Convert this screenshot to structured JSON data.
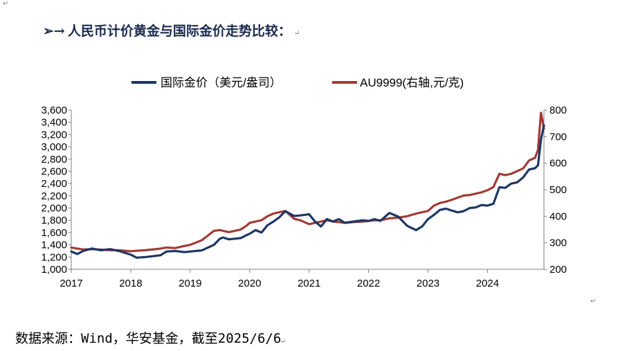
{
  "heading": {
    "arrow": "➢→",
    "text": "人民币计价黄金与国际金价走势比较：",
    "mark": "↵"
  },
  "source": {
    "text": "数据来源：Wind，华安基金，截至2025/6/6",
    "mark": "↵"
  },
  "colors": {
    "series1": "#1c3664",
    "series2": "#a33a35",
    "axis": "#7f7f7f"
  },
  "chart_data": {
    "type": "line",
    "legend_position": "top-center",
    "grid": false,
    "x_ticks": [
      "2017",
      "2018",
      "2019",
      "2020",
      "2021",
      "2022",
      "2023",
      "2024"
    ],
    "xlim": [
      2017.0,
      2024.95
    ],
    "y_left": {
      "ticks": [
        "1,000",
        "1,200",
        "1,400",
        "1,600",
        "1,800",
        "2,000",
        "2,200",
        "2,400",
        "2,600",
        "2,800",
        "3,000",
        "3,200",
        "3,400",
        "3,600"
      ],
      "ylim": [
        1000,
        3600
      ]
    },
    "y_right": {
      "ticks": [
        "200",
        "300",
        "400",
        "500",
        "600",
        "700",
        "800"
      ],
      "ylim": [
        200,
        800
      ]
    },
    "series": [
      {
        "name": "国际金价（美元/盎司）",
        "axis": "left",
        "x": [
          2017.0,
          2017.1,
          2017.2,
          2017.35,
          2017.5,
          2017.65,
          2017.8,
          2017.9,
          2018.0,
          2018.1,
          2018.25,
          2018.5,
          2018.6,
          2018.75,
          2018.9,
          2019.0,
          2019.2,
          2019.4,
          2019.5,
          2019.55,
          2019.65,
          2019.75,
          2019.85,
          2019.95,
          2020.0,
          2020.1,
          2020.2,
          2020.3,
          2020.4,
          2020.5,
          2020.6,
          2020.75,
          2020.85,
          2021.0,
          2021.1,
          2021.2,
          2021.3,
          2021.4,
          2021.5,
          2021.6,
          2021.75,
          2021.9,
          2022.0,
          2022.1,
          2022.2,
          2022.35,
          2022.5,
          2022.65,
          2022.8,
          2022.9,
          2023.0,
          2023.1,
          2023.2,
          2023.3,
          2023.4,
          2023.5,
          2023.6,
          2023.7,
          2023.8,
          2023.9,
          2024.0,
          2024.1,
          2024.2,
          2024.3,
          2024.4,
          2024.5,
          2024.6,
          2024.7,
          2024.8,
          2024.85,
          2024.9,
          2024.95
        ],
        "y": [
          1290,
          1250,
          1300,
          1340,
          1310,
          1330,
          1300,
          1270,
          1240,
          1190,
          1200,
          1230,
          1290,
          1300,
          1280,
          1290,
          1310,
          1400,
          1500,
          1520,
          1490,
          1500,
          1510,
          1560,
          1580,
          1640,
          1600,
          1720,
          1780,
          1850,
          1950,
          1870,
          1880,
          1900,
          1780,
          1700,
          1820,
          1780,
          1820,
          1760,
          1780,
          1800,
          1790,
          1820,
          1790,
          1920,
          1860,
          1710,
          1640,
          1700,
          1820,
          1890,
          1970,
          1990,
          1960,
          1930,
          1950,
          2000,
          2010,
          2050,
          2040,
          2070,
          2340,
          2330,
          2400,
          2420,
          2500,
          2630,
          2650,
          2700,
          3120,
          3350
        ]
      },
      {
        "name": "AU9999(右轴,元/克)",
        "axis": "right",
        "x": [
          2017.0,
          2017.1,
          2017.2,
          2017.35,
          2017.5,
          2017.65,
          2017.8,
          2017.9,
          2018.0,
          2018.1,
          2018.25,
          2018.5,
          2018.6,
          2018.75,
          2018.9,
          2019.0,
          2019.2,
          2019.4,
          2019.5,
          2019.55,
          2019.65,
          2019.75,
          2019.85,
          2019.95,
          2020.0,
          2020.1,
          2020.2,
          2020.3,
          2020.4,
          2020.5,
          2020.6,
          2020.75,
          2020.85,
          2021.0,
          2021.1,
          2021.2,
          2021.3,
          2021.4,
          2021.5,
          2021.6,
          2021.75,
          2021.9,
          2022.0,
          2022.1,
          2022.2,
          2022.35,
          2022.5,
          2022.65,
          2022.8,
          2022.9,
          2023.0,
          2023.1,
          2023.2,
          2023.3,
          2023.4,
          2023.5,
          2023.6,
          2023.7,
          2023.8,
          2023.9,
          2024.0,
          2024.1,
          2024.2,
          2024.3,
          2024.4,
          2024.5,
          2024.6,
          2024.7,
          2024.8,
          2024.85,
          2024.9,
          2024.95
        ],
        "y": [
          282,
          278,
          275,
          276,
          274,
          272,
          272,
          270,
          268,
          270,
          272,
          278,
          282,
          280,
          288,
          292,
          310,
          345,
          348,
          345,
          340,
          345,
          350,
          365,
          375,
          380,
          385,
          400,
          410,
          415,
          420,
          390,
          385,
          370,
          375,
          380,
          385,
          380,
          378,
          375,
          378,
          380,
          382,
          385,
          385,
          392,
          395,
          400,
          410,
          415,
          420,
          440,
          450,
          455,
          462,
          470,
          478,
          480,
          485,
          490,
          498,
          510,
          560,
          555,
          560,
          570,
          580,
          610,
          620,
          650,
          790,
          730
        ]
      }
    ]
  }
}
